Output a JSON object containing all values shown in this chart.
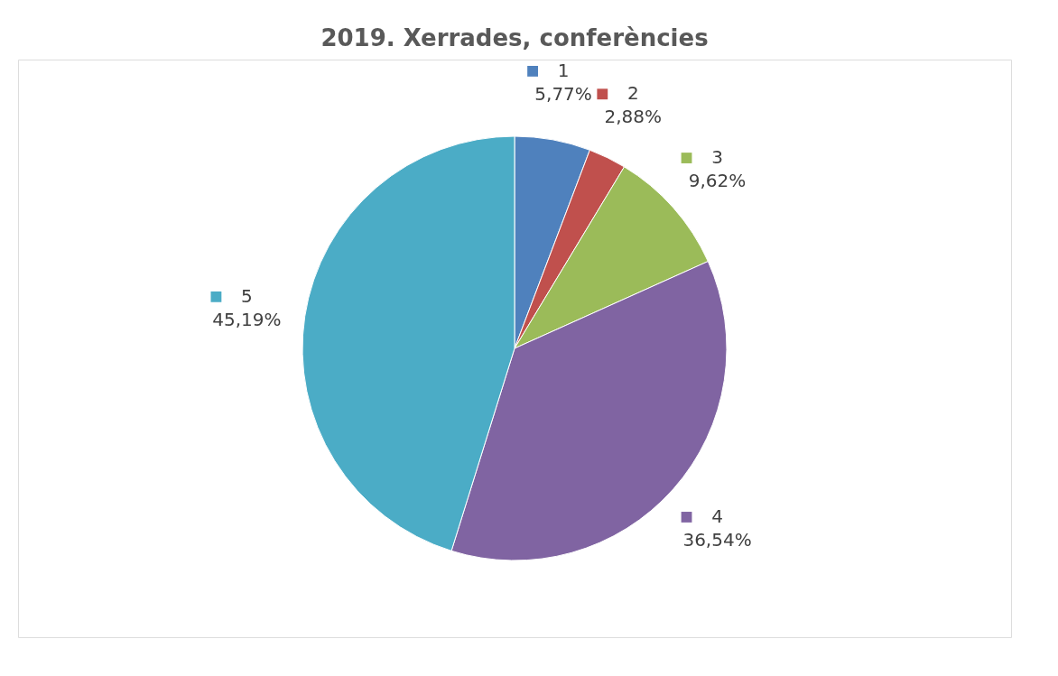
{
  "chart_data": {
    "type": "pie",
    "title": "2019. Xerrades, conferències",
    "categories": [
      "1",
      "2",
      "3",
      "4",
      "5"
    ],
    "values": [
      5.77,
      2.88,
      9.62,
      36.54,
      45.19
    ],
    "colors": [
      "#4f81bd",
      "#c0504d",
      "#9bbb59",
      "#8064a2",
      "#4bacc6"
    ],
    "value_labels": [
      "5,77%",
      "2,88%",
      "9,62%",
      "36,54%",
      "45,19%"
    ],
    "legend": "top left"
  }
}
